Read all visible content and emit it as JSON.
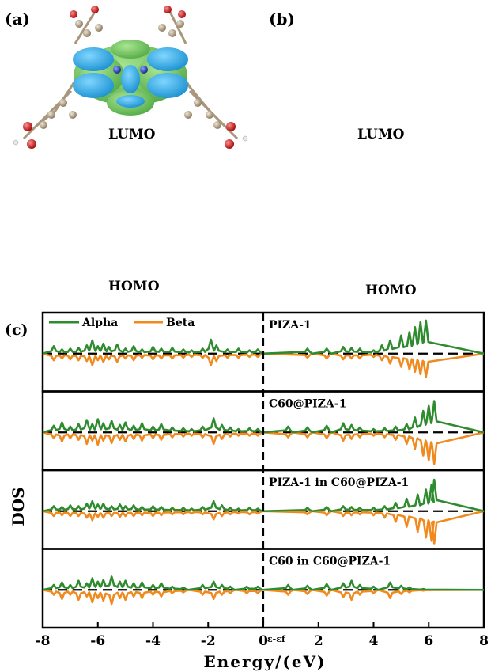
{
  "panels": {
    "a": "(a)",
    "b": "(b)",
    "c": "(c)"
  },
  "orbitals": {
    "a_top": "LUMO",
    "a_bottom": "HOMO",
    "b_top": "LUMO",
    "b_bottom": "HOMO"
  },
  "colors": {
    "alpha": "#2e8b2e",
    "beta": "#f08a1e",
    "lobe_blue": "#1fa3e0",
    "lobe_green": "#5ab84a",
    "atom_c": "#b5a48a",
    "atom_o": "#d42020",
    "atom_n": "#3050c8"
  },
  "chart_data": {
    "type": "line",
    "xlabel": "Energy/(eV)",
    "ylabel": "DOS",
    "xlim": [
      -8,
      8
    ],
    "xticks": [
      "-8",
      "-6",
      "-4",
      "-2",
      "0",
      "2",
      "4",
      "6",
      "8"
    ],
    "fermi_label": "ε-εf",
    "legend": [
      "Alpha",
      "Beta"
    ],
    "subplots": [
      {
        "title": "PIZA-1",
        "alpha": [
          [
            -7.6,
            0.45
          ],
          [
            -7.3,
            0.25
          ],
          [
            -7.0,
            0.3
          ],
          [
            -6.7,
            0.35
          ],
          [
            -6.4,
            0.5
          ],
          [
            -6.2,
            0.8
          ],
          [
            -6.0,
            0.45
          ],
          [
            -5.8,
            0.6
          ],
          [
            -5.6,
            0.4
          ],
          [
            -5.3,
            0.55
          ],
          [
            -5.0,
            0.3
          ],
          [
            -4.7,
            0.45
          ],
          [
            -4.4,
            0.25
          ],
          [
            -4.0,
            0.4
          ],
          [
            -3.7,
            0.3
          ],
          [
            -3.3,
            0.35
          ],
          [
            -2.9,
            0.25
          ],
          [
            -2.6,
            0.2
          ],
          [
            -2.2,
            0.3
          ],
          [
            -1.9,
            0.85
          ],
          [
            -1.7,
            0.5
          ],
          [
            -1.3,
            0.25
          ],
          [
            -0.9,
            0.3
          ],
          [
            -0.5,
            0.2
          ],
          [
            -0.2,
            0.25
          ],
          [
            1.6,
            0.3
          ],
          [
            2.3,
            0.3
          ],
          [
            2.9,
            0.4
          ],
          [
            3.2,
            0.35
          ],
          [
            3.5,
            0.3
          ],
          [
            4.0,
            0.2
          ],
          [
            4.3,
            0.5
          ],
          [
            4.6,
            0.8
          ],
          [
            5.0,
            1.1
          ],
          [
            5.3,
            1.3
          ],
          [
            5.5,
            1.6
          ],
          [
            5.7,
            1.9
          ],
          [
            5.9,
            2.0
          ]
        ],
        "beta": [
          [
            -7.6,
            0.4
          ],
          [
            -7.3,
            0.3
          ],
          [
            -7.0,
            0.35
          ],
          [
            -6.7,
            0.4
          ],
          [
            -6.4,
            0.45
          ],
          [
            -6.2,
            0.7
          ],
          [
            -6.0,
            0.4
          ],
          [
            -5.8,
            0.5
          ],
          [
            -5.6,
            0.35
          ],
          [
            -5.3,
            0.5
          ],
          [
            -5.0,
            0.3
          ],
          [
            -4.7,
            0.4
          ],
          [
            -4.4,
            0.25
          ],
          [
            -4.0,
            0.35
          ],
          [
            -3.7,
            0.3
          ],
          [
            -3.3,
            0.3
          ],
          [
            -2.9,
            0.25
          ],
          [
            -2.6,
            0.2
          ],
          [
            -2.2,
            0.25
          ],
          [
            -1.9,
            0.7
          ],
          [
            -1.7,
            0.45
          ],
          [
            -1.3,
            0.25
          ],
          [
            -0.9,
            0.25
          ],
          [
            -0.5,
            0.2
          ],
          [
            -0.2,
            0.2
          ],
          [
            1.6,
            0.25
          ],
          [
            2.3,
            0.3
          ],
          [
            2.9,
            0.35
          ],
          [
            3.2,
            0.3
          ],
          [
            3.5,
            0.3
          ],
          [
            4.0,
            0.2
          ],
          [
            4.3,
            0.4
          ],
          [
            4.6,
            0.6
          ],
          [
            5.0,
            0.8
          ],
          [
            5.3,
            0.95
          ],
          [
            5.5,
            1.1
          ],
          [
            5.7,
            1.25
          ],
          [
            5.9,
            1.4
          ]
        ]
      },
      {
        "title": "C60@PIZA-1",
        "alpha": [
          [
            -7.6,
            0.4
          ],
          [
            -7.3,
            0.6
          ],
          [
            -7.0,
            0.35
          ],
          [
            -6.7,
            0.5
          ],
          [
            -6.4,
            0.75
          ],
          [
            -6.2,
            0.5
          ],
          [
            -6.0,
            0.8
          ],
          [
            -5.8,
            0.55
          ],
          [
            -5.5,
            0.7
          ],
          [
            -5.2,
            0.45
          ],
          [
            -5.0,
            0.6
          ],
          [
            -4.7,
            0.4
          ],
          [
            -4.4,
            0.55
          ],
          [
            -4.0,
            0.35
          ],
          [
            -3.7,
            0.5
          ],
          [
            -3.3,
            0.3
          ],
          [
            -2.9,
            0.25
          ],
          [
            -2.6,
            0.2
          ],
          [
            -2.2,
            0.35
          ],
          [
            -1.8,
            0.85
          ],
          [
            -1.5,
            0.45
          ],
          [
            -1.2,
            0.3
          ],
          [
            -0.9,
            0.2
          ],
          [
            -0.5,
            0.25
          ],
          [
            -0.2,
            0.2
          ],
          [
            0.9,
            0.35
          ],
          [
            1.6,
            0.3
          ],
          [
            2.3,
            0.4
          ],
          [
            2.9,
            0.55
          ],
          [
            3.2,
            0.45
          ],
          [
            3.5,
            0.3
          ],
          [
            4.0,
            0.2
          ],
          [
            4.4,
            0.25
          ],
          [
            4.8,
            0.35
          ],
          [
            5.2,
            0.5
          ],
          [
            5.5,
            0.9
          ],
          [
            5.8,
            1.3
          ],
          [
            6.0,
            1.6
          ],
          [
            6.2,
            1.9
          ]
        ],
        "beta": [
          [
            -7.6,
            0.35
          ],
          [
            -7.3,
            0.55
          ],
          [
            -7.0,
            0.35
          ],
          [
            -6.7,
            0.45
          ],
          [
            -6.4,
            0.7
          ],
          [
            -6.2,
            0.5
          ],
          [
            -6.0,
            0.75
          ],
          [
            -5.8,
            0.5
          ],
          [
            -5.5,
            0.65
          ],
          [
            -5.2,
            0.45
          ],
          [
            -5.0,
            0.55
          ],
          [
            -4.7,
            0.4
          ],
          [
            -4.4,
            0.5
          ],
          [
            -4.0,
            0.35
          ],
          [
            -3.7,
            0.45
          ],
          [
            -3.3,
            0.3
          ],
          [
            -2.9,
            0.25
          ],
          [
            -2.6,
            0.2
          ],
          [
            -2.2,
            0.3
          ],
          [
            -1.8,
            0.7
          ],
          [
            -1.5,
            0.4
          ],
          [
            -1.2,
            0.25
          ],
          [
            -0.9,
            0.2
          ],
          [
            -0.5,
            0.2
          ],
          [
            -0.2,
            0.2
          ],
          [
            0.9,
            0.3
          ],
          [
            1.6,
            0.3
          ],
          [
            2.3,
            0.35
          ],
          [
            2.9,
            0.5
          ],
          [
            3.2,
            0.4
          ],
          [
            3.5,
            0.3
          ],
          [
            4.0,
            0.2
          ],
          [
            4.4,
            0.3
          ],
          [
            4.8,
            0.45
          ],
          [
            5.2,
            0.7
          ],
          [
            5.5,
            1.0
          ],
          [
            5.8,
            1.4
          ],
          [
            6.0,
            1.7
          ],
          [
            6.2,
            1.9
          ]
        ]
      },
      {
        "title": "PIZA-1 in C60@PIZA-1",
        "alpha": [
          [
            -7.6,
            0.3
          ],
          [
            -7.3,
            0.25
          ],
          [
            -7.0,
            0.35
          ],
          [
            -6.7,
            0.3
          ],
          [
            -6.4,
            0.45
          ],
          [
            -6.2,
            0.6
          ],
          [
            -6.0,
            0.4
          ],
          [
            -5.8,
            0.45
          ],
          [
            -5.5,
            0.3
          ],
          [
            -5.2,
            0.4
          ],
          [
            -5.0,
            0.3
          ],
          [
            -4.7,
            0.35
          ],
          [
            -4.4,
            0.25
          ],
          [
            -4.0,
            0.3
          ],
          [
            -3.7,
            0.25
          ],
          [
            -3.3,
            0.2
          ],
          [
            -2.9,
            0.2
          ],
          [
            -2.6,
            0.15
          ],
          [
            -2.2,
            0.25
          ],
          [
            -1.8,
            0.6
          ],
          [
            -1.5,
            0.35
          ],
          [
            -1.2,
            0.2
          ],
          [
            -0.9,
            0.15
          ],
          [
            -0.5,
            0.2
          ],
          [
            -0.2,
            0.15
          ],
          [
            1.6,
            0.2
          ],
          [
            2.3,
            0.25
          ],
          [
            2.9,
            0.3
          ],
          [
            3.2,
            0.25
          ],
          [
            3.5,
            0.2
          ],
          [
            4.0,
            0.2
          ],
          [
            4.4,
            0.3
          ],
          [
            4.8,
            0.5
          ],
          [
            5.2,
            0.75
          ],
          [
            5.6,
            1.0
          ],
          [
            5.9,
            1.3
          ],
          [
            6.1,
            1.6
          ],
          [
            6.2,
            1.9
          ]
        ],
        "beta": [
          [
            -7.6,
            0.3
          ],
          [
            -7.3,
            0.25
          ],
          [
            -7.0,
            0.3
          ],
          [
            -6.7,
            0.3
          ],
          [
            -6.4,
            0.4
          ],
          [
            -6.2,
            0.55
          ],
          [
            -6.0,
            0.35
          ],
          [
            -5.8,
            0.4
          ],
          [
            -5.5,
            0.3
          ],
          [
            -5.2,
            0.35
          ],
          [
            -5.0,
            0.3
          ],
          [
            -4.7,
            0.3
          ],
          [
            -4.4,
            0.25
          ],
          [
            -4.0,
            0.3
          ],
          [
            -3.7,
            0.25
          ],
          [
            -3.3,
            0.2
          ],
          [
            -2.9,
            0.2
          ],
          [
            -2.6,
            0.15
          ],
          [
            -2.2,
            0.2
          ],
          [
            -1.8,
            0.5
          ],
          [
            -1.5,
            0.3
          ],
          [
            -1.2,
            0.2
          ],
          [
            -0.9,
            0.15
          ],
          [
            -0.5,
            0.2
          ],
          [
            -0.2,
            0.15
          ],
          [
            1.6,
            0.2
          ],
          [
            2.3,
            0.25
          ],
          [
            2.9,
            0.3
          ],
          [
            3.2,
            0.25
          ],
          [
            3.5,
            0.2
          ],
          [
            4.0,
            0.25
          ],
          [
            4.4,
            0.4
          ],
          [
            4.8,
            0.65
          ],
          [
            5.2,
            0.95
          ],
          [
            5.6,
            1.25
          ],
          [
            5.9,
            1.6
          ],
          [
            6.1,
            1.8
          ],
          [
            6.2,
            1.95
          ]
        ]
      },
      {
        "title": "C60 in C60@PIZA-1",
        "alpha": [
          [
            -7.6,
            0.3
          ],
          [
            -7.3,
            0.45
          ],
          [
            -7.0,
            0.3
          ],
          [
            -6.7,
            0.55
          ],
          [
            -6.4,
            0.4
          ],
          [
            -6.2,
            0.7
          ],
          [
            -6.0,
            0.5
          ],
          [
            -5.8,
            0.6
          ],
          [
            -5.5,
            0.8
          ],
          [
            -5.2,
            0.5
          ],
          [
            -5.0,
            0.55
          ],
          [
            -4.7,
            0.4
          ],
          [
            -4.4,
            0.45
          ],
          [
            -4.0,
            0.3
          ],
          [
            -3.7,
            0.4
          ],
          [
            -3.3,
            0.2
          ],
          [
            -2.9,
            0.15
          ],
          [
            -2.2,
            0.3
          ],
          [
            -1.8,
            0.5
          ],
          [
            -1.5,
            0.3
          ],
          [
            -1.2,
            0.2
          ],
          [
            -0.6,
            0.2
          ],
          [
            -0.2,
            0.2
          ],
          [
            0.9,
            0.3
          ],
          [
            1.6,
            0.25
          ],
          [
            2.3,
            0.35
          ],
          [
            2.9,
            0.4
          ],
          [
            3.2,
            0.55
          ],
          [
            3.5,
            0.3
          ],
          [
            4.0,
            0.2
          ],
          [
            4.6,
            0.45
          ],
          [
            5.0,
            0.25
          ],
          [
            5.3,
            0.15
          ],
          [
            5.8,
            0.05
          ]
        ],
        "beta": [
          [
            -7.6,
            0.3
          ],
          [
            -7.3,
            0.55
          ],
          [
            -7.0,
            0.3
          ],
          [
            -6.7,
            0.6
          ],
          [
            -6.4,
            0.4
          ],
          [
            -6.2,
            0.75
          ],
          [
            -6.0,
            0.5
          ],
          [
            -5.8,
            0.65
          ],
          [
            -5.5,
            0.85
          ],
          [
            -5.2,
            0.5
          ],
          [
            -5.0,
            0.6
          ],
          [
            -4.7,
            0.4
          ],
          [
            -4.4,
            0.5
          ],
          [
            -4.0,
            0.3
          ],
          [
            -3.7,
            0.4
          ],
          [
            -3.3,
            0.2
          ],
          [
            -2.9,
            0.15
          ],
          [
            -2.2,
            0.3
          ],
          [
            -1.8,
            0.55
          ],
          [
            -1.5,
            0.3
          ],
          [
            -1.2,
            0.2
          ],
          [
            -0.6,
            0.2
          ],
          [
            -0.2,
            0.2
          ],
          [
            0.9,
            0.3
          ],
          [
            1.6,
            0.25
          ],
          [
            2.3,
            0.35
          ],
          [
            2.9,
            0.45
          ],
          [
            3.2,
            0.6
          ],
          [
            3.5,
            0.3
          ],
          [
            4.0,
            0.2
          ],
          [
            4.6,
            0.5
          ],
          [
            5.0,
            0.25
          ],
          [
            5.3,
            0.15
          ],
          [
            5.8,
            0.05
          ]
        ]
      }
    ]
  }
}
